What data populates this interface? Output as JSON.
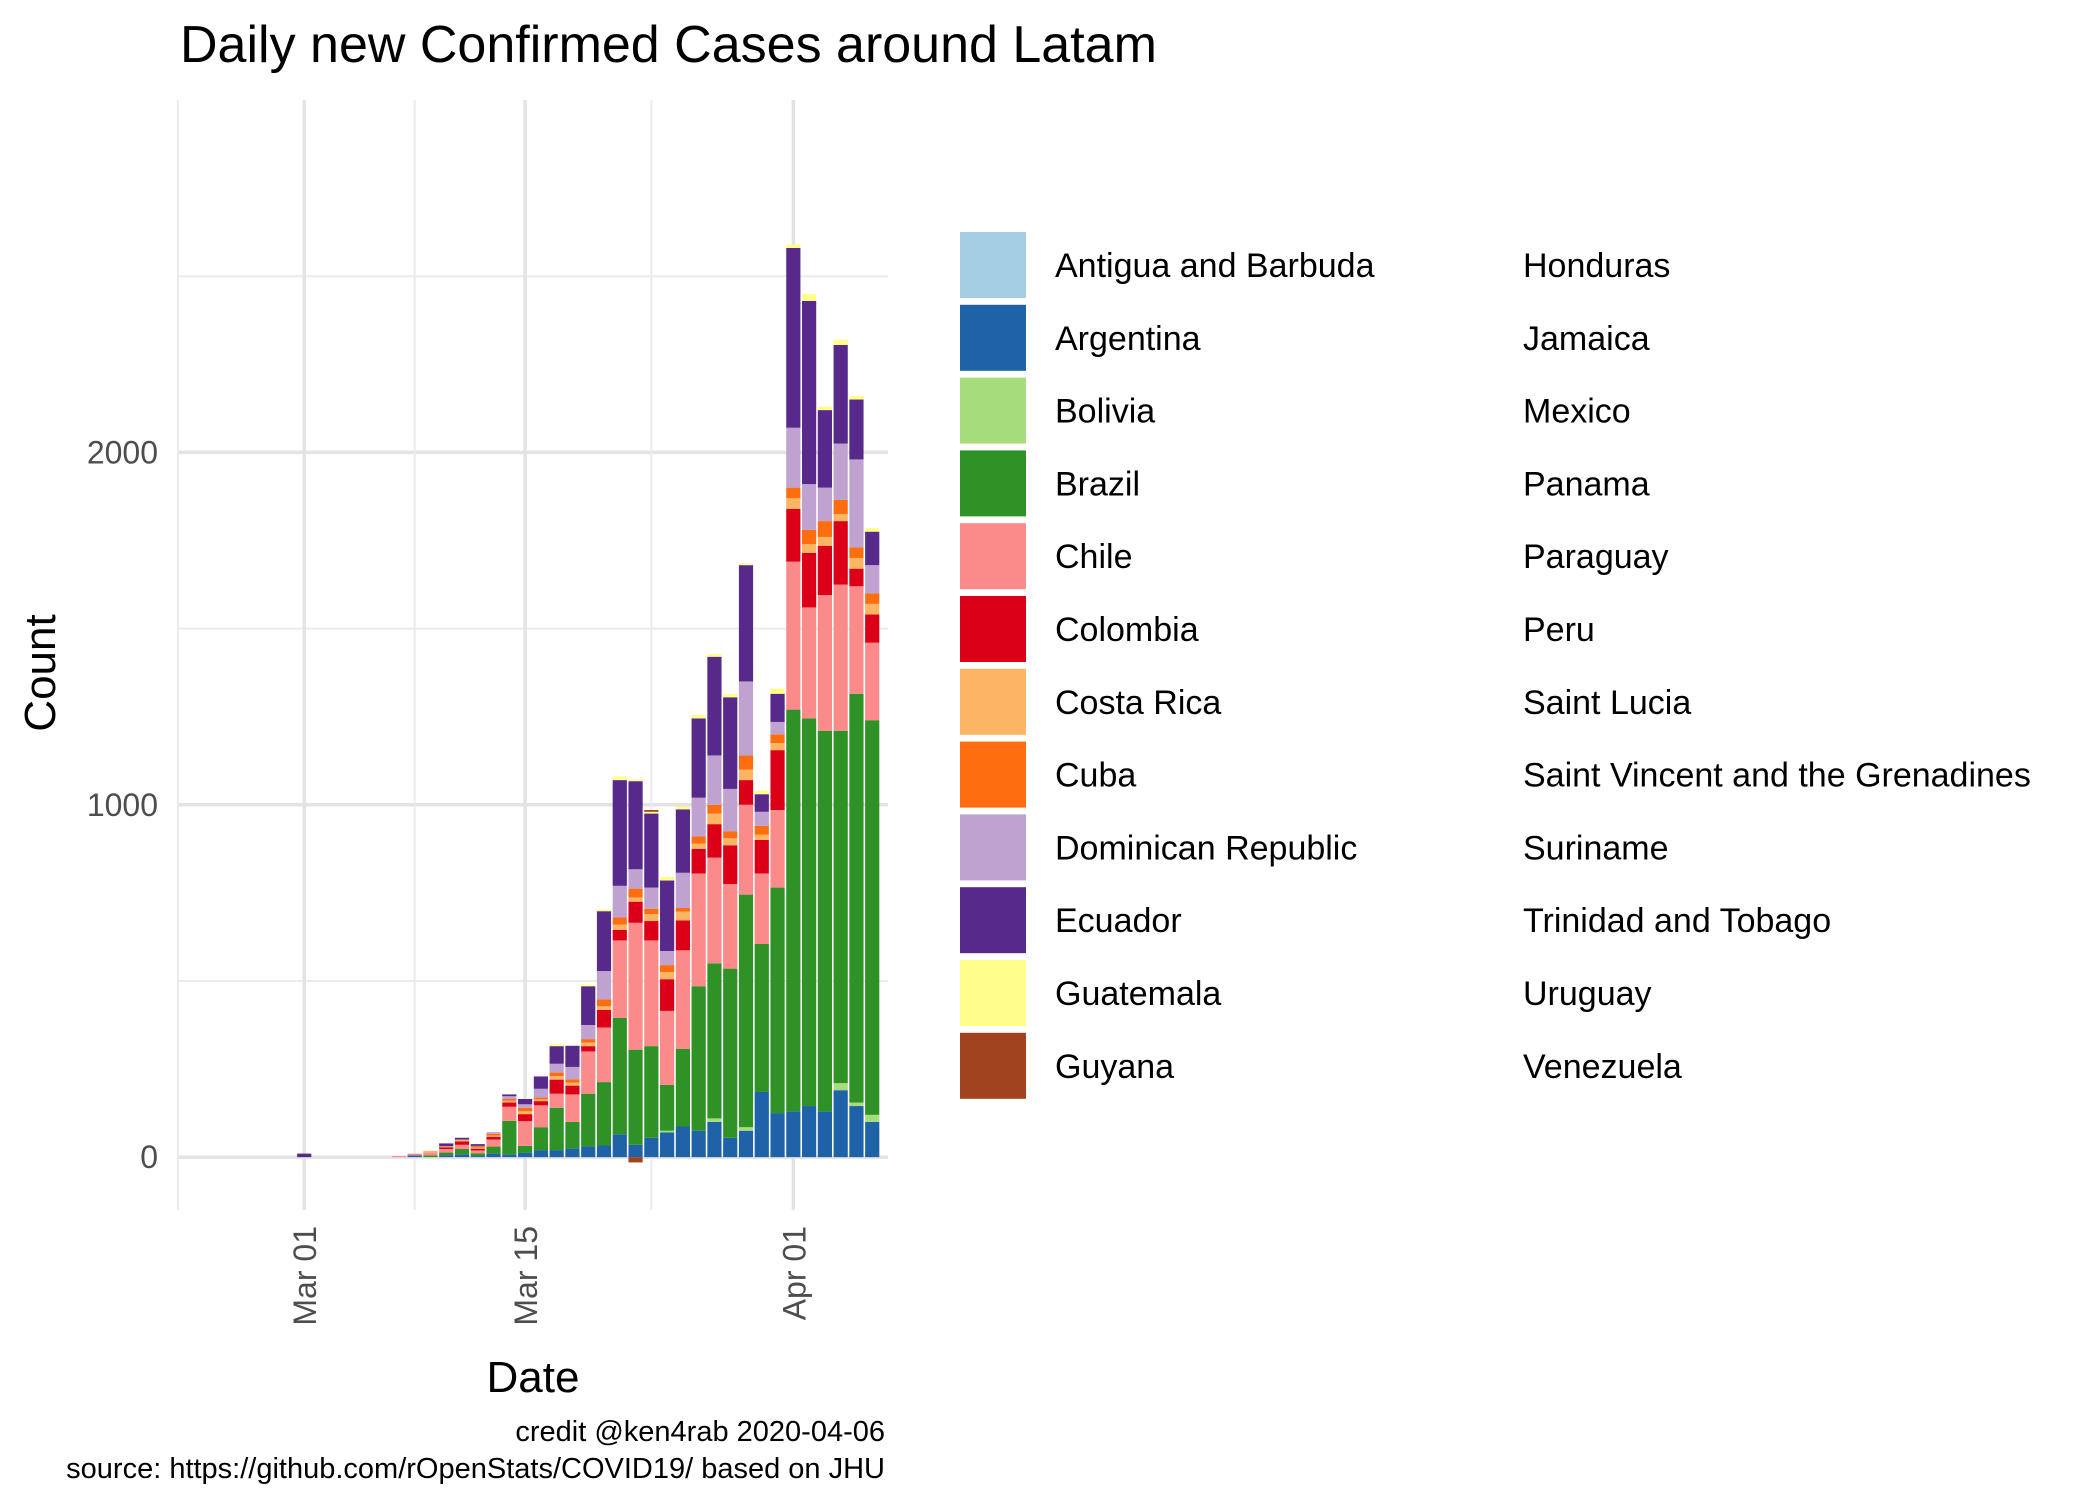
{
  "chart_data": {
    "type": "bar",
    "stacked": true,
    "title": "Daily new Confirmed Cases around Latam",
    "xlabel": "Date",
    "ylabel": "Count",
    "x_ticks": [
      {
        "date": "2020-03-01",
        "label": "Mar 01"
      },
      {
        "date": "2020-03-15",
        "label": "Mar 15"
      },
      {
        "date": "2020-04-01",
        "label": "Apr 01"
      }
    ],
    "y_ticks": [
      0,
      1000,
      2000
    ],
    "ylim": [
      -150,
      3000
    ],
    "xlim": [
      "2020-02-22",
      "2020-04-07"
    ],
    "grid": true,
    "legend": {
      "position": "right",
      "columns": 2
    },
    "caption": [
      "credit @ken4rab 2020-04-06",
      "source: https://github.com/rOpenStats/COVID19/ based on JHU"
    ],
    "dates": [
      "2020-02-26",
      "2020-02-28",
      "2020-03-01",
      "2020-03-02",
      "2020-03-03",
      "2020-03-04",
      "2020-03-05",
      "2020-03-06",
      "2020-03-07",
      "2020-03-08",
      "2020-03-09",
      "2020-03-10",
      "2020-03-11",
      "2020-03-12",
      "2020-03-13",
      "2020-03-14",
      "2020-03-15",
      "2020-03-16",
      "2020-03-17",
      "2020-03-18",
      "2020-03-19",
      "2020-03-20",
      "2020-03-21",
      "2020-03-22",
      "2020-03-23",
      "2020-03-24",
      "2020-03-25",
      "2020-03-26",
      "2020-03-27",
      "2020-03-28",
      "2020-03-29",
      "2020-03-30",
      "2020-03-31",
      "2020-04-01",
      "2020-04-02",
      "2020-04-03",
      "2020-04-04",
      "2020-04-05",
      "2020-04-06"
    ],
    "series": [
      {
        "name": "Antigua and Barbuda",
        "color": "#a6cee3",
        "values": [
          0,
          0,
          0,
          0,
          0,
          0,
          0,
          0,
          0,
          0,
          0,
          0,
          0,
          0,
          0,
          0,
          0,
          0,
          0,
          0,
          0,
          0,
          0,
          0,
          0,
          0,
          0,
          0,
          0,
          0,
          0,
          0,
          0,
          0,
          0,
          0,
          0,
          0,
          0
        ]
      },
      {
        "name": "Argentina",
        "color": "#1f62a8",
        "values": [
          0,
          0,
          0,
          0,
          0,
          0,
          0,
          0,
          0,
          5,
          0,
          5,
          8,
          3,
          10,
          8,
          12,
          20,
          20,
          25,
          30,
          33,
          65,
          35,
          55,
          70,
          87,
          75,
          100,
          55,
          75,
          185,
          125,
          130,
          145,
          130,
          190,
          145,
          100
        ]
      },
      {
        "name": "Bolivia",
        "color": "#a6dc7c",
        "values": [
          0,
          0,
          0,
          0,
          0,
          0,
          0,
          0,
          0,
          0,
          0,
          0,
          0,
          0,
          0,
          0,
          0,
          0,
          0,
          0,
          0,
          0,
          0,
          0,
          0,
          5,
          0,
          0,
          10,
          0,
          10,
          0,
          0,
          0,
          0,
          0,
          20,
          10,
          20
        ]
      },
      {
        "name": "Brazil",
        "color": "#2e9227",
        "values": [
          0,
          0,
          0,
          0,
          0,
          0,
          0,
          0,
          0,
          0,
          5,
          8,
          15,
          8,
          20,
          95,
          20,
          65,
          120,
          75,
          150,
          180,
          330,
          270,
          260,
          130,
          220,
          410,
          440,
          480,
          660,
          420,
          640,
          1140,
          1100,
          1080,
          1000,
          1160,
          1120
        ]
      },
      {
        "name": "Chile",
        "color": "#fb8a8a",
        "values": [
          0,
          0,
          0,
          0,
          0,
          0,
          0,
          0,
          3,
          5,
          8,
          10,
          12,
          8,
          20,
          40,
          70,
          62,
          40,
          78,
          120,
          155,
          220,
          360,
          300,
          210,
          280,
          320,
          300,
          240,
          255,
          200,
          220,
          420,
          315,
          385,
          415,
          305,
          220
        ]
      },
      {
        "name": "Colombia",
        "color": "#db0017",
        "values": [
          0,
          0,
          0,
          0,
          0,
          0,
          0,
          0,
          0,
          0,
          0,
          5,
          10,
          5,
          8,
          12,
          20,
          12,
          40,
          25,
          15,
          50,
          30,
          60,
          55,
          90,
          85,
          70,
          95,
          110,
          70,
          95,
          170,
          150,
          155,
          140,
          180,
          50,
          80
        ]
      },
      {
        "name": "Costa Rica",
        "color": "#fbb563",
        "values": [
          0,
          0,
          0,
          0,
          0,
          0,
          0,
          0,
          0,
          0,
          5,
          3,
          5,
          3,
          3,
          5,
          8,
          5,
          10,
          8,
          10,
          10,
          15,
          12,
          20,
          20,
          25,
          15,
          30,
          20,
          30,
          15,
          20,
          30,
          25,
          25,
          20,
          30,
          30
        ]
      },
      {
        "name": "Cuba",
        "color": "#fe6e10",
        "values": [
          0,
          0,
          0,
          0,
          0,
          0,
          0,
          0,
          0,
          0,
          0,
          0,
          0,
          5,
          5,
          5,
          10,
          5,
          10,
          10,
          10,
          20,
          20,
          25,
          15,
          20,
          10,
          20,
          25,
          20,
          40,
          25,
          25,
          30,
          40,
          45,
          40,
          30,
          30
        ]
      },
      {
        "name": "Dominican Republic",
        "color": "#bfa2cf",
        "values": [
          0,
          0,
          0,
          0,
          0,
          0,
          0,
          0,
          0,
          0,
          0,
          0,
          0,
          0,
          5,
          8,
          10,
          25,
          25,
          35,
          40,
          80,
          90,
          55,
          60,
          40,
          100,
          110,
          140,
          120,
          210,
          40,
          35,
          170,
          130,
          95,
          160,
          250,
          80
        ]
      },
      {
        "name": "Ecuador",
        "color": "#56298b",
        "values": [
          0,
          0,
          10,
          0,
          0,
          0,
          0,
          0,
          0,
          0,
          0,
          8,
          5,
          5,
          0,
          5,
          15,
          35,
          50,
          60,
          110,
          170,
          300,
          250,
          210,
          200,
          180,
          225,
          280,
          260,
          330,
          50,
          80,
          510,
          520,
          220,
          280,
          170,
          95
        ]
      },
      {
        "name": "Guatemala",
        "color": "#fefe88",
        "values": [
          0,
          0,
          0,
          0,
          0,
          0,
          0,
          0,
          0,
          0,
          0,
          0,
          0,
          0,
          0,
          0,
          0,
          0,
          5,
          0,
          5,
          5,
          10,
          5,
          5,
          10,
          8,
          10,
          8,
          10,
          5,
          10,
          15,
          10,
          20,
          10,
          15,
          10,
          10
        ]
      },
      {
        "name": "Guyana",
        "color": "#a1431f",
        "values": [
          0,
          0,
          0,
          0,
          0,
          0,
          0,
          0,
          0,
          0,
          0,
          0,
          0,
          0,
          0,
          0,
          0,
          0,
          0,
          0,
          0,
          0,
          0,
          -15,
          5,
          0,
          0,
          0,
          0,
          0,
          0,
          0,
          0,
          0,
          0,
          0,
          0,
          0,
          0
        ]
      },
      {
        "name": "Honduras",
        "color": "#000000",
        "values": [
          0,
          0,
          0,
          0,
          0,
          0,
          0,
          0,
          0,
          0,
          0,
          0,
          0,
          0,
          0,
          0,
          0,
          0,
          0,
          0,
          0,
          0,
          0,
          0,
          0,
          0,
          0,
          0,
          0,
          0,
          0,
          0,
          0,
          0,
          0,
          0,
          0,
          0,
          0
        ]
      },
      {
        "name": "Jamaica",
        "color": "#000000",
        "values": [
          0,
          0,
          0,
          0,
          0,
          0,
          0,
          0,
          0,
          0,
          0,
          0,
          0,
          0,
          0,
          0,
          0,
          0,
          0,
          0,
          0,
          0,
          0,
          0,
          0,
          0,
          0,
          0,
          0,
          0,
          0,
          0,
          0,
          0,
          0,
          0,
          0,
          0,
          0
        ]
      },
      {
        "name": "Mexico",
        "color": "#000000",
        "values": [
          0,
          0,
          0,
          0,
          0,
          0,
          0,
          0,
          0,
          0,
          0,
          0,
          0,
          0,
          0,
          0,
          0,
          0,
          0,
          0,
          0,
          0,
          0,
          0,
          0,
          0,
          0,
          0,
          0,
          0,
          0,
          0,
          0,
          0,
          0,
          0,
          0,
          0,
          0
        ]
      },
      {
        "name": "Panama",
        "color": "#000000",
        "values": [
          0,
          0,
          0,
          0,
          0,
          0,
          0,
          0,
          0,
          0,
          0,
          0,
          0,
          0,
          0,
          0,
          0,
          0,
          0,
          0,
          0,
          0,
          0,
          0,
          0,
          0,
          0,
          0,
          0,
          0,
          0,
          0,
          0,
          0,
          0,
          0,
          0,
          0,
          0
        ]
      },
      {
        "name": "Paraguay",
        "color": "#000000",
        "values": [
          0,
          0,
          0,
          0,
          0,
          0,
          0,
          0,
          0,
          0,
          0,
          0,
          0,
          0,
          0,
          0,
          0,
          0,
          0,
          0,
          0,
          0,
          0,
          0,
          0,
          0,
          0,
          0,
          0,
          0,
          0,
          0,
          0,
          0,
          0,
          0,
          0,
          0,
          0
        ]
      },
      {
        "name": "Peru",
        "color": "#000000",
        "values": [
          0,
          0,
          0,
          0,
          0,
          0,
          0,
          0,
          0,
          0,
          0,
          0,
          0,
          0,
          0,
          0,
          0,
          0,
          0,
          0,
          0,
          0,
          0,
          0,
          0,
          0,
          0,
          0,
          0,
          0,
          0,
          0,
          0,
          0,
          0,
          0,
          0,
          0,
          0
        ]
      },
      {
        "name": "Saint Lucia",
        "color": "#000000",
        "values": [
          0,
          0,
          0,
          0,
          0,
          0,
          0,
          0,
          0,
          0,
          0,
          0,
          0,
          0,
          0,
          0,
          0,
          0,
          0,
          0,
          0,
          0,
          0,
          0,
          0,
          0,
          0,
          0,
          0,
          0,
          0,
          0,
          0,
          0,
          0,
          0,
          0,
          0,
          0
        ]
      },
      {
        "name": "Saint Vincent and the Grenadines",
        "color": "#000000",
        "values": [
          0,
          0,
          0,
          0,
          0,
          0,
          0,
          0,
          0,
          0,
          0,
          0,
          0,
          0,
          0,
          0,
          0,
          0,
          0,
          0,
          0,
          0,
          0,
          0,
          0,
          0,
          0,
          0,
          0,
          0,
          0,
          0,
          0,
          0,
          0,
          0,
          0,
          0,
          0
        ]
      },
      {
        "name": "Suriname",
        "color": "#000000",
        "values": [
          0,
          0,
          0,
          0,
          0,
          0,
          0,
          0,
          0,
          0,
          0,
          0,
          0,
          0,
          0,
          0,
          0,
          0,
          0,
          0,
          0,
          0,
          0,
          0,
          0,
          0,
          0,
          0,
          0,
          0,
          0,
          0,
          0,
          0,
          0,
          0,
          0,
          0,
          0
        ]
      },
      {
        "name": "Trinidad and Tobago",
        "color": "#000000",
        "values": [
          0,
          0,
          0,
          0,
          0,
          0,
          0,
          0,
          0,
          0,
          0,
          0,
          0,
          0,
          0,
          0,
          0,
          0,
          0,
          0,
          0,
          0,
          0,
          0,
          0,
          0,
          0,
          0,
          0,
          0,
          0,
          0,
          0,
          0,
          0,
          0,
          0,
          0,
          0
        ]
      },
      {
        "name": "Uruguay",
        "color": "#000000",
        "values": [
          0,
          0,
          0,
          0,
          0,
          0,
          0,
          0,
          0,
          0,
          0,
          0,
          0,
          0,
          0,
          0,
          0,
          0,
          0,
          0,
          0,
          0,
          0,
          0,
          0,
          0,
          0,
          0,
          0,
          0,
          0,
          0,
          0,
          0,
          0,
          0,
          0,
          0,
          0
        ]
      },
      {
        "name": "Venezuela",
        "color": "#000000",
        "values": [
          0,
          0,
          0,
          0,
          0,
          0,
          0,
          0,
          0,
          0,
          0,
          0,
          0,
          0,
          0,
          0,
          0,
          0,
          0,
          0,
          0,
          0,
          0,
          0,
          0,
          0,
          0,
          0,
          0,
          0,
          0,
          0,
          0,
          0,
          0,
          0,
          0,
          0,
          0
        ]
      }
    ]
  }
}
